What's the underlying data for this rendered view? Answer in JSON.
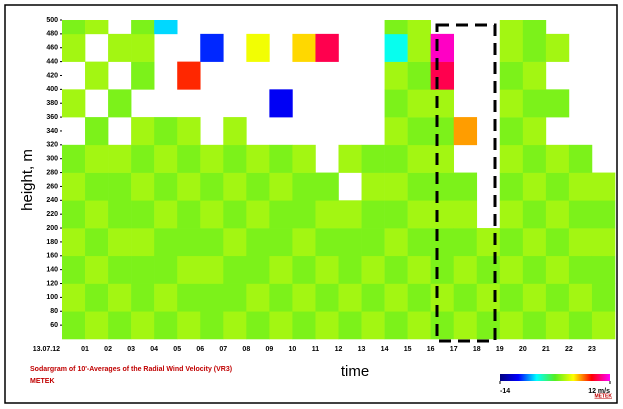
{
  "chart_data": {
    "type": "heatmap",
    "title": "Sodargram of 10'-Averages of the Radial Wind Velocity (VR3)",
    "subtitle": "METEK",
    "brand": "METEK",
    "x_label": "time",
    "y_label": "height, m",
    "categories": [
      "13.07.12",
      "01",
      "02",
      "03",
      "04",
      "05",
      "06",
      "07",
      "08",
      "09",
      "10",
      "11",
      "12",
      "13",
      "14",
      "15",
      "16",
      "17",
      "18",
      "19",
      "20",
      "21",
      "22",
      "23"
    ],
    "height_bins": [
      40,
      80,
      120,
      160,
      200,
      240,
      280,
      320,
      360,
      400,
      440,
      480,
      500
    ],
    "ylim": [
      40,
      500
    ],
    "yticks": [
      60,
      80,
      100,
      120,
      140,
      160,
      180,
      200,
      220,
      240,
      260,
      280,
      300,
      320,
      340,
      360,
      380,
      400,
      420,
      440,
      460,
      480,
      500
    ],
    "clim": [
      -14,
      12
    ],
    "cticks": [
      -14,
      {
        "value": 12,
        "label": "12 m/s"
      }
    ],
    "values": [
      [
        0,
        1,
        0,
        1,
        0,
        1,
        0,
        null,
        1,
        null,
        1,
        0
      ],
      [
        1,
        0,
        1,
        0,
        1,
        0,
        1,
        0,
        null,
        1,
        null,
        1
      ],
      [
        0,
        1,
        0,
        1,
        0,
        0,
        1,
        null,
        0,
        null,
        1,
        null
      ],
      [
        1,
        0,
        0,
        1,
        0,
        1,
        0,
        1,
        null,
        0,
        1,
        0
      ],
      [
        0,
        1,
        0,
        0,
        1,
        0,
        1,
        0,
        null,
        null,
        null,
        -6
      ],
      [
        1,
        0,
        1,
        0,
        0,
        1,
        0,
        1,
        null,
        7,
        null,
        null
      ],
      [
        0,
        0,
        1,
        0,
        1,
        0,
        1,
        null,
        null,
        null,
        -9,
        null
      ],
      [
        1,
        0,
        0,
        1,
        0,
        1,
        0,
        1,
        null,
        null,
        null,
        null
      ],
      [
        0,
        1,
        0,
        0,
        1,
        0,
        1,
        null,
        null,
        null,
        3,
        null
      ],
      [
        1,
        0,
        1,
        0,
        0,
        1,
        0,
        null,
        -10,
        null,
        null,
        null
      ],
      [
        0,
        1,
        0,
        1,
        0,
        0,
        1,
        null,
        null,
        null,
        4,
        null
      ],
      [
        1,
        0,
        1,
        0,
        1,
        0,
        null,
        null,
        null,
        null,
        9,
        null
      ],
      [
        0,
        1,
        0,
        0,
        1,
        null,
        1,
        null,
        null,
        null,
        null,
        null
      ],
      [
        1,
        0,
        1,
        0,
        0,
        1,
        0,
        null,
        null,
        null,
        null,
        null
      ],
      [
        0,
        1,
        0,
        1,
        0,
        1,
        0,
        1,
        0,
        1,
        -5,
        0
      ],
      [
        1,
        0,
        1,
        0,
        1,
        0,
        1,
        0,
        1,
        0,
        1,
        1
      ],
      [
        0,
        1,
        0,
        0,
        1,
        0,
        1,
        0,
        1,
        9,
        11,
        null
      ],
      [
        1,
        0,
        1,
        0,
        1,
        0,
        null,
        5,
        null,
        null,
        null,
        null
      ],
      [
        0,
        1,
        0,
        1,
        null,
        null,
        null,
        null,
        null,
        null,
        null,
        null
      ],
      [
        1,
        0,
        1,
        0,
        1,
        0,
        1,
        0,
        1,
        0,
        1,
        1
      ],
      [
        0,
        1,
        0,
        1,
        0,
        1,
        0,
        1,
        0,
        1,
        0,
        0
      ],
      [
        1,
        0,
        1,
        0,
        1,
        0,
        1,
        null,
        0,
        null,
        1,
        null
      ],
      [
        0,
        1,
        0,
        1,
        0,
        1,
        0,
        null,
        null,
        null,
        null,
        null
      ],
      [
        1,
        0,
        0,
        1,
        0,
        1,
        null,
        null,
        null,
        null,
        null,
        null
      ]
    ]
  }
}
